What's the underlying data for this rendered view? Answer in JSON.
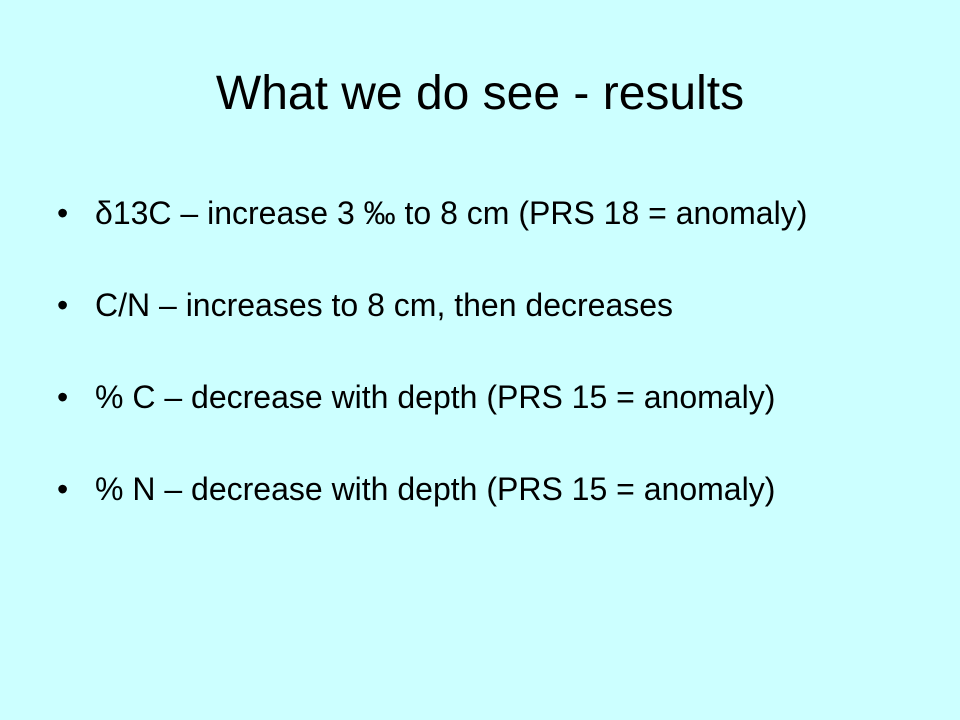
{
  "title": "What we do see - results",
  "bullets": [
    "δ13C – increase 3 ‰  to 8 cm (PRS 18 = anomaly)",
    "C/N – increases to 8 cm, then decreases",
    "% C – decrease with depth (PRS 15 = anomaly)",
    "% N – decrease with depth (PRS 15 = anomaly)"
  ]
}
